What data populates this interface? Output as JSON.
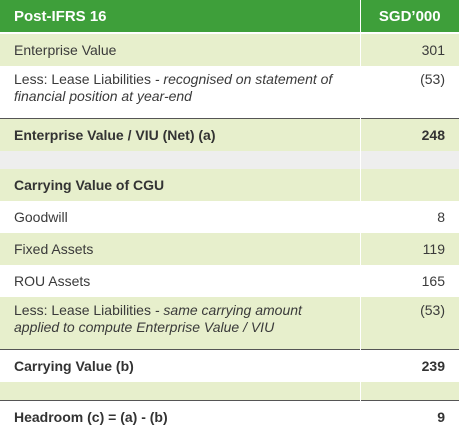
{
  "table": {
    "header": {
      "label": "Post-IFRS 16",
      "value": "SGD’000"
    },
    "enterprise_value": {
      "label": "Enterprise Value",
      "value": "301"
    },
    "lease_liab_ev": {
      "label": "Less: Lease Liabilities",
      "note": " - recognised on statement of financial position at year-end",
      "value": "(53)"
    },
    "ev_net": {
      "label": "Enterprise Value / VIU (Net) (a)",
      "value": "248"
    },
    "carrying_heading": {
      "label": "Carrying Value of CGU"
    },
    "goodwill": {
      "label": "Goodwill",
      "value": "8"
    },
    "fixed_assets": {
      "label": "Fixed Assets",
      "value": "119"
    },
    "rou_assets": {
      "label": "ROU Assets",
      "value": "165"
    },
    "lease_liab_cv": {
      "label": "Less: Lease Liabilities",
      "note": " - same carrying amount applied to compute Enterprise Value / VIU",
      "value": "(53)"
    },
    "carrying_value": {
      "label": "Carrying Value (b)",
      "value": "239"
    },
    "headroom": {
      "label": "Headroom (c) = (a) - (b)",
      "value": "9"
    }
  },
  "colors": {
    "header_green": "#3e9f3a",
    "row_light_green": "#e7efcc",
    "row_gray": "#eeeeee"
  }
}
